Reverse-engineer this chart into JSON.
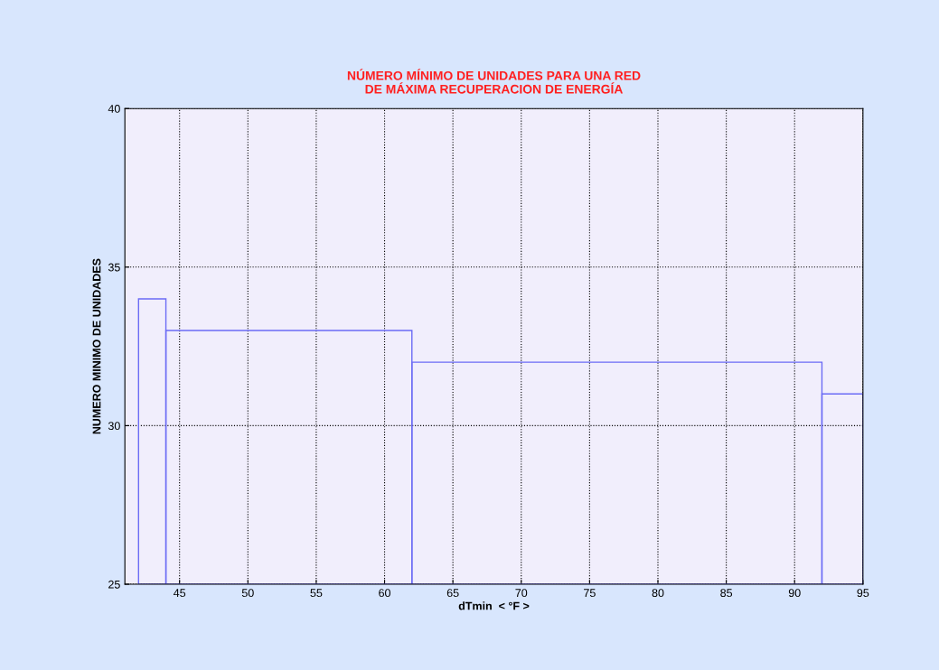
{
  "chart_data": {
    "type": "histogram",
    "title": "NÚMERO MÍNIMO DE UNIDADES PARA UNA RED\nDE MÁXIMA RECUPERACION DE ENERGÍA",
    "xlabel": "dTmin  < °F >",
    "ylabel": "NUMERO MINIMO DE UNIDADES",
    "bins": [
      42,
      44,
      62,
      92,
      95
    ],
    "values": [
      34,
      33,
      32,
      31
    ],
    "color": "#6b6bf5",
    "xlim": [
      41,
      95
    ],
    "xticks": [
      45,
      50,
      55,
      60,
      65,
      70,
      75,
      80,
      85,
      90,
      95
    ],
    "ylim": [
      25,
      40
    ],
    "yticks": [
      25,
      30,
      35,
      40
    ],
    "grid": true
  }
}
